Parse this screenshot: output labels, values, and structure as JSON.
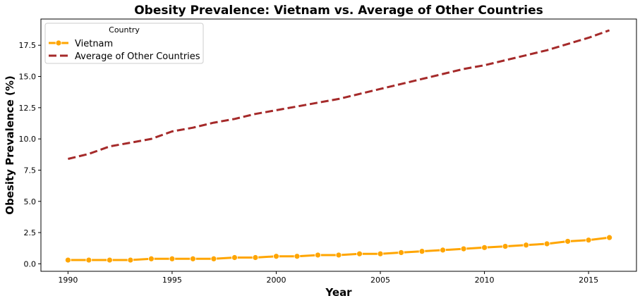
{
  "chart_data": {
    "type": "line",
    "title": "Obesity Prevalence: Vietnam vs. Average of Other Countries",
    "xlabel": "Year",
    "ylabel": "Obesity Prevalence (%)",
    "xlim": [
      1988.7,
      2017.3
    ],
    "ylim": [
      -0.6,
      19.6
    ],
    "xticks": [
      1990,
      1995,
      2000,
      2005,
      2010,
      2015
    ],
    "yticks": [
      0.0,
      2.5,
      5.0,
      7.5,
      10.0,
      12.5,
      15.0,
      17.5
    ],
    "ytick_labels": [
      "0.0",
      "2.5",
      "5.0",
      "7.5",
      "10.0",
      "12.5",
      "15.0",
      "17.5"
    ],
    "grid": false,
    "legend": {
      "title": "Country",
      "position": "top-left"
    },
    "x": [
      1990,
      1991,
      1992,
      1993,
      1994,
      1995,
      1996,
      1997,
      1998,
      1999,
      2000,
      2001,
      2002,
      2003,
      2004,
      2005,
      2006,
      2007,
      2008,
      2009,
      2010,
      2011,
      2012,
      2013,
      2014,
      2015,
      2016
    ],
    "series": [
      {
        "name": "Vietnam",
        "color": "#FFA500",
        "style": "solid",
        "marker": "circle",
        "values": [
          0.3,
          0.3,
          0.3,
          0.3,
          0.4,
          0.4,
          0.4,
          0.4,
          0.5,
          0.5,
          0.6,
          0.6,
          0.7,
          0.7,
          0.8,
          0.8,
          0.9,
          1.0,
          1.1,
          1.2,
          1.3,
          1.4,
          1.5,
          1.6,
          1.8,
          1.9,
          2.1
        ]
      },
      {
        "name": "Average of Other Countries",
        "color": "#A52A2A",
        "style": "dashed",
        "marker": "none",
        "values": [
          8.4,
          8.8,
          9.4,
          9.7,
          10.0,
          10.6,
          10.9,
          11.3,
          11.6,
          12.0,
          12.3,
          12.6,
          12.9,
          13.2,
          13.6,
          14.0,
          14.4,
          14.8,
          15.2,
          15.6,
          15.9,
          16.3,
          16.7,
          17.1,
          17.6,
          18.1,
          18.7
        ]
      }
    ]
  }
}
